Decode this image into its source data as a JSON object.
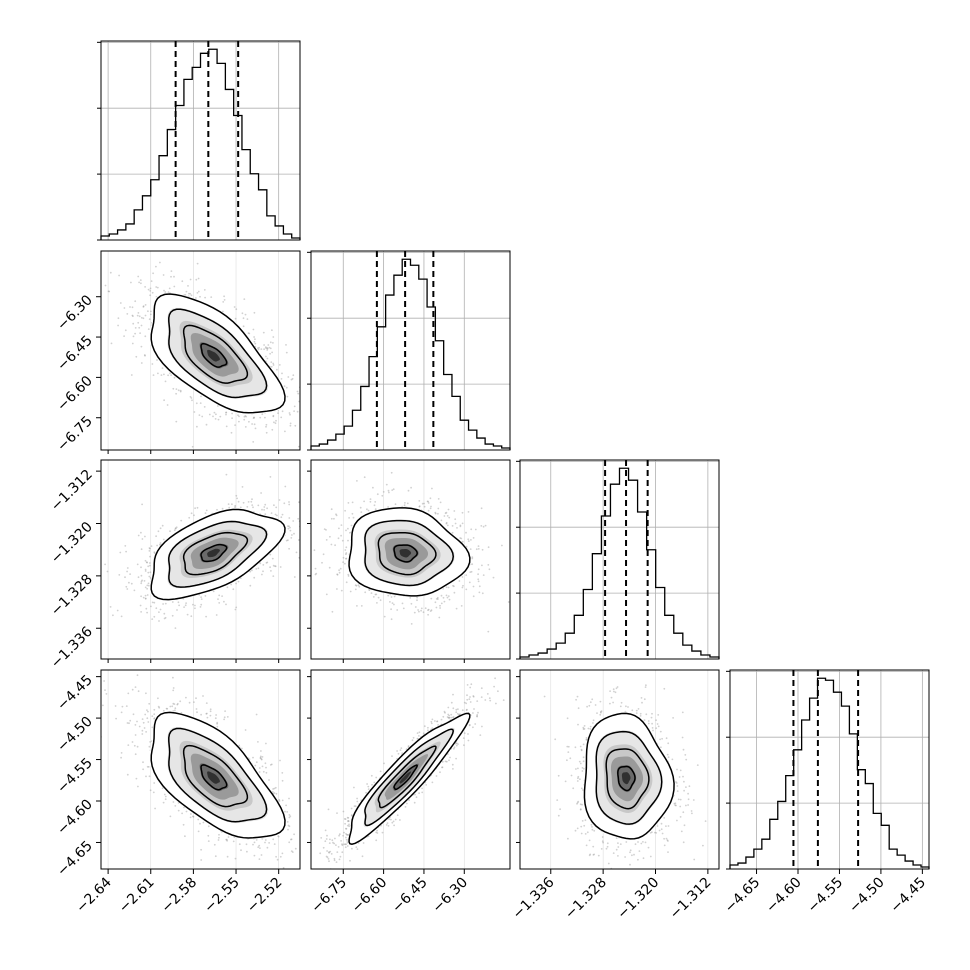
{
  "chart_data": {
    "type": "corner",
    "parameters": [
      {
        "range": [
          -2.645,
          -2.505
        ],
        "ticks": [
          -2.64,
          -2.61,
          -2.58,
          -2.55,
          -2.52
        ],
        "tick_labels": [
          "−2.64",
          "−2.61",
          "−2.58",
          "−2.55",
          "−2.52"
        ],
        "quantiles": [
          -2.5925,
          -2.5695,
          -2.5485
        ],
        "mode": -2.566,
        "sigma": 0.022,
        "histogram": [
          0.02,
          0.03,
          0.05,
          0.08,
          0.15,
          0.22,
          0.3,
          0.42,
          0.55,
          0.67,
          0.8,
          0.86,
          0.93,
          0.95,
          0.88,
          0.75,
          0.62,
          0.45,
          0.33,
          0.25,
          0.12,
          0.07,
          0.03,
          0.01
        ]
      },
      {
        "range": [
          -6.87,
          -6.13
        ],
        "ticks": [
          -6.75,
          -6.6,
          -6.45,
          -6.3
        ],
        "tick_labels": [
          "−6.75",
          "−6.60",
          "−6.45",
          "−6.30"
        ],
        "quantiles": [
          -6.625,
          -6.52,
          -6.415
        ],
        "mode": -6.52,
        "sigma": 0.105,
        "histogram": [
          0.02,
          0.03,
          0.05,
          0.08,
          0.12,
          0.2,
          0.32,
          0.47,
          0.62,
          0.78,
          0.88,
          0.96,
          0.93,
          0.86,
          0.72,
          0.55,
          0.38,
          0.27,
          0.15,
          0.1,
          0.06,
          0.03,
          0.02,
          0.01
        ]
      },
      {
        "range": [
          -1.3407,
          -1.3103
        ],
        "ticks": [
          -1.336,
          -1.328,
          -1.32,
          -1.312
        ],
        "tick_labels": [
          "−1.336",
          "−1.328",
          "−1.320",
          "−1.312"
        ],
        "quantiles": [
          -1.3277,
          -1.3245,
          -1.3212
        ],
        "mode": -1.3245,
        "sigma": 0.0032,
        "histogram": [
          0.01,
          0.02,
          0.03,
          0.05,
          0.08,
          0.13,
          0.22,
          0.35,
          0.53,
          0.72,
          0.88,
          0.96,
          0.9,
          0.74,
          0.55,
          0.36,
          0.22,
          0.13,
          0.07,
          0.04,
          0.02,
          0.01
        ]
      },
      {
        "range": [
          -4.682,
          -4.442
        ],
        "ticks": [
          -4.65,
          -4.6,
          -4.55,
          -4.5,
          -4.45
        ],
        "tick_labels": [
          "−4.65",
          "−4.60",
          "−4.55",
          "−4.50",
          "−4.45"
        ],
        "quantiles": [
          -4.6055,
          -4.576,
          -4.5275
        ],
        "mode": -4.572,
        "sigma": 0.036,
        "histogram": [
          0.02,
          0.03,
          0.06,
          0.1,
          0.15,
          0.25,
          0.34,
          0.47,
          0.6,
          0.75,
          0.86,
          0.96,
          0.95,
          0.89,
          0.82,
          0.68,
          0.5,
          0.43,
          0.28,
          0.22,
          0.1,
          0.07,
          0.04,
          0.02,
          0.01
        ]
      }
    ],
    "correlations": [
      {
        "i": 1,
        "j": 0,
        "r": -0.62
      },
      {
        "i": 2,
        "j": 0,
        "r": 0.52
      },
      {
        "i": 2,
        "j": 1,
        "r": -0.1
      },
      {
        "i": 3,
        "j": 0,
        "r": -0.62
      },
      {
        "i": 3,
        "j": 1,
        "r": 0.92
      },
      {
        "i": 3,
        "j": 2,
        "r": -0.08
      }
    ],
    "contour_levels": [
      0.5,
      1.0,
      1.5,
      2.0
    ],
    "grid": true,
    "colors": {
      "line": "#000000",
      "grid": "#b0b0b0",
      "scatter": "#999999",
      "density_max": "#1a1a1a"
    }
  }
}
